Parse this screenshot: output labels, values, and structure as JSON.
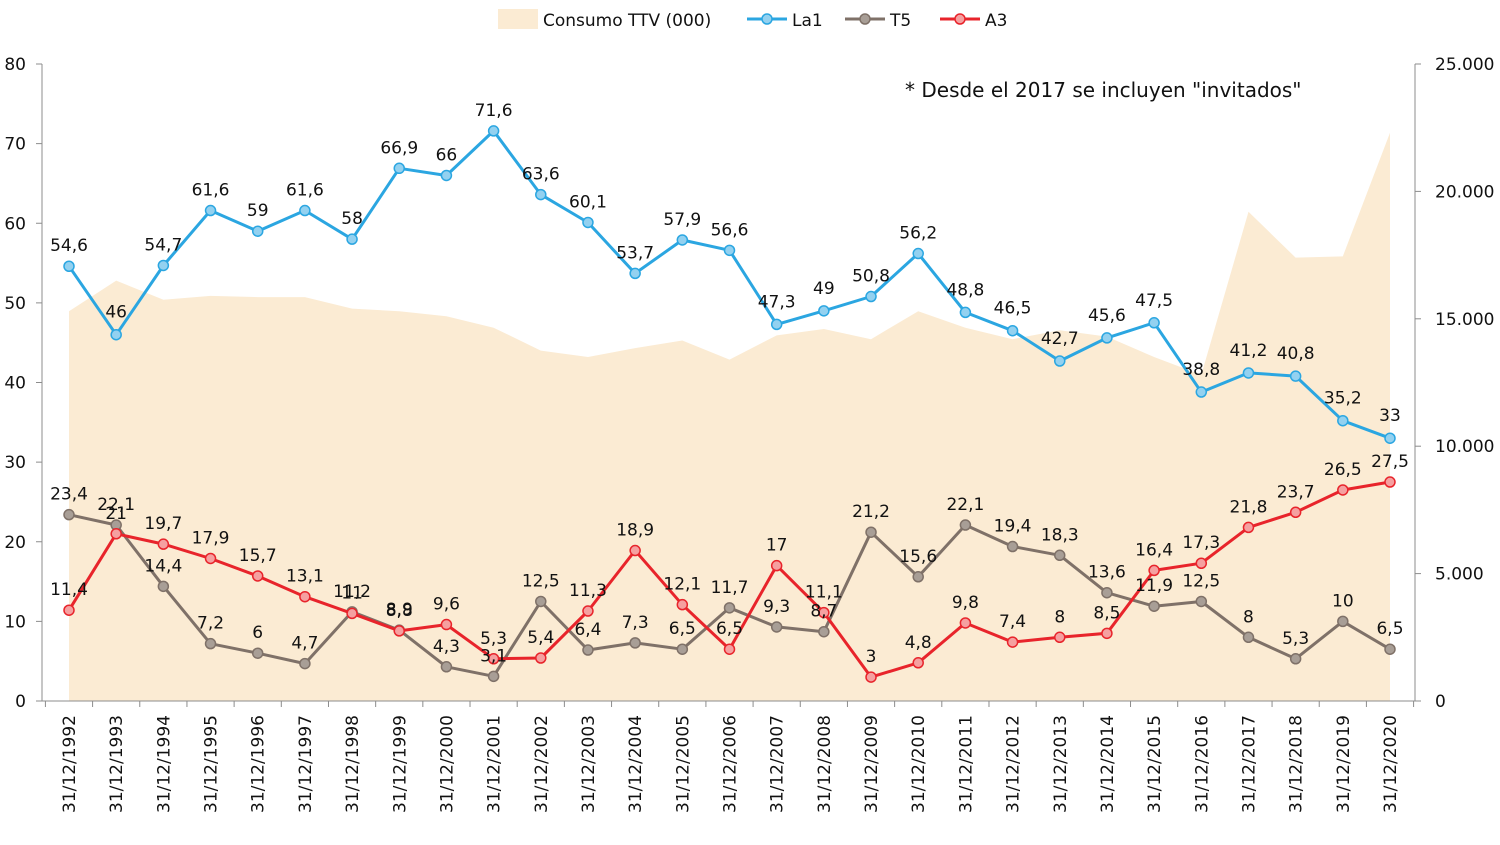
{
  "chart_data": {
    "type": "line",
    "title": "",
    "annotation": "* Desde el 2017 se incluyen \"invitados\"",
    "categories": [
      "31/12/1992",
      "31/12/1993",
      "31/12/1994",
      "31/12/1995",
      "31/12/1996",
      "31/12/1997",
      "31/12/1998",
      "31/12/1999",
      "31/12/2000",
      "31/12/2001",
      "31/12/2002",
      "31/12/2003",
      "31/12/2004",
      "31/12/2005",
      "31/12/2006",
      "31/12/2007",
      "31/12/2008",
      "31/12/2009",
      "31/12/2010",
      "31/12/2011",
      "31/12/2012",
      "31/12/2013",
      "31/12/2014",
      "31/12/2015",
      "31/12/2016",
      "31/12/2017",
      "31/12/2018",
      "31/12/2019",
      "31/12/2020"
    ],
    "y_left": {
      "min": 0,
      "max": 80,
      "ticks": [
        "0",
        "10",
        "20",
        "30",
        "40",
        "50",
        "60",
        "70",
        "80"
      ]
    },
    "y_right": {
      "min": 0,
      "max": 25000,
      "ticks": [
        "0",
        "5.000",
        "10.000",
        "15.000",
        "20.000",
        "25.000"
      ]
    },
    "legend_position": "top",
    "area": {
      "name": "Consumo TTV (000)",
      "color": "#fbebd3",
      "axis": "right",
      "values": [
        15300,
        16500,
        15750,
        15900,
        15850,
        15850,
        15400,
        15300,
        15100,
        14650,
        13750,
        13500,
        13850,
        14150,
        13400,
        14350,
        14600,
        14200,
        15300,
        14650,
        14200,
        14550,
        14300,
        13500,
        12800,
        19200,
        17400,
        17450,
        22300
      ]
    },
    "series": [
      {
        "name": "La1",
        "color": "#2ba6e1",
        "marker_fill": "#93d1f0",
        "axis": "left",
        "values": [
          54.6,
          46,
          54.7,
          61.6,
          59,
          61.6,
          58,
          66.9,
          66,
          71.6,
          63.6,
          60.1,
          53.7,
          57.9,
          56.6,
          47.3,
          49,
          50.8,
          56.2,
          48.8,
          46.5,
          42.7,
          45.6,
          47.5,
          38.8,
          41.2,
          40.8,
          35.2,
          33
        ],
        "labels": [
          "54,6",
          "46",
          "54,7",
          "61,6",
          "59",
          "61,6",
          "58",
          "66,9",
          "66",
          "71,6",
          "63,6",
          "60,1",
          "53,7",
          "57,9",
          "56,6",
          "47,3",
          "49",
          "50,8",
          "56,2",
          "48,8",
          "46,5",
          "42,7",
          "45,6",
          "47,5",
          "38,8",
          "41,2",
          "40,8",
          "35,2",
          "33"
        ]
      },
      {
        "name": "T5",
        "color": "#7f7168",
        "marker_fill": "#a89e96",
        "axis": "left",
        "values": [
          23.4,
          22.1,
          14.4,
          7.2,
          6,
          4.7,
          11.2,
          8.9,
          4.3,
          3.1,
          12.5,
          6.4,
          7.3,
          6.5,
          11.7,
          9.3,
          8.7,
          21.2,
          15.6,
          22.1,
          19.4,
          18.3,
          13.6,
          11.9,
          12.5,
          8,
          5.3,
          10,
          6.5
        ],
        "labels": [
          "23,4",
          "22,1",
          "14,4",
          "7,2",
          "6",
          "4,7",
          "11,2",
          "8,9",
          "4,3",
          "3,1",
          "12,5",
          "6,4",
          "7,3",
          "6,5",
          "11,7",
          "9,3",
          "8,7",
          "21,2",
          "15,6",
          "22,1",
          "19,4",
          "18,3",
          "13,6",
          "11,9",
          "12,5",
          "8",
          "5,3",
          "10",
          "6,5"
        ]
      },
      {
        "name": "A3",
        "color": "#e8242b",
        "marker_fill": "#f5a0a0",
        "axis": "left",
        "values": [
          11.4,
          21,
          19.7,
          17.9,
          15.7,
          13.1,
          11,
          8.8,
          9.6,
          5.3,
          5.4,
          11.3,
          18.9,
          12.1,
          6.5,
          17,
          11.1,
          3,
          4.8,
          9.8,
          7.4,
          8,
          8.5,
          16.4,
          17.3,
          21.8,
          23.7,
          26.5,
          27.5
        ],
        "labels": [
          "11,4",
          "21",
          "19,7",
          "17,9",
          "15,7",
          "13,1",
          "11",
          "8,8",
          "9,6",
          "5,3",
          "5,4",
          "11,3",
          "18,9",
          "12,1",
          "6,5",
          "17",
          "11,1",
          "3",
          "4,8",
          "9,8",
          "7,4",
          "8",
          "8,5",
          "16,4",
          "17,3",
          "21,8",
          "23,7",
          "26,5",
          "27,5"
        ]
      }
    ]
  }
}
